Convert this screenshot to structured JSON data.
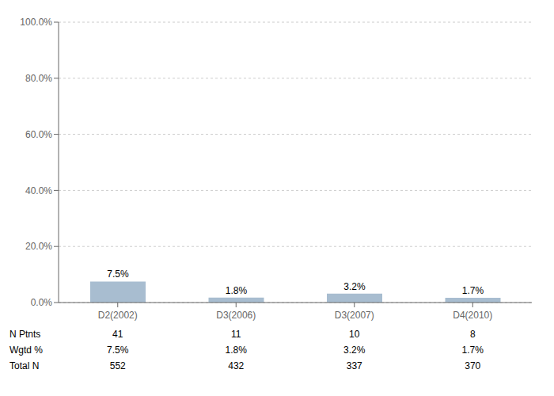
{
  "chart_data": {
    "type": "bar",
    "categories": [
      "D2(2002)",
      "D3(2006)",
      "D3(2007)",
      "D4(2010)"
    ],
    "values": [
      7.5,
      1.8,
      3.2,
      1.7
    ],
    "value_labels": [
      "7.5%",
      "1.8%",
      "3.2%",
      "1.7%"
    ],
    "data_labels": true,
    "color": "#a8bdd0",
    "ylim": [
      0,
      100
    ],
    "yticks": [
      {
        "value": 0,
        "label": "0.0%"
      },
      {
        "value": 20,
        "label": "20.0%"
      },
      {
        "value": 40,
        "label": "40.0%"
      },
      {
        "value": 60,
        "label": "60.0%"
      },
      {
        "value": 80,
        "label": "80.0%"
      },
      {
        "value": 100,
        "label": "100.0%"
      }
    ],
    "grid": true,
    "table": [
      {
        "name": "N Ptnts",
        "values": [
          41,
          11,
          10,
          8
        ]
      },
      {
        "name": "Wgtd %",
        "values": [
          7.5,
          1.8,
          3.2,
          1.7
        ],
        "value_labels": [
          "7.5%",
          "1.8%",
          "3.2%",
          "1.7%"
        ]
      },
      {
        "name": "Total N",
        "values": [
          552,
          432,
          337,
          370
        ]
      }
    ]
  }
}
